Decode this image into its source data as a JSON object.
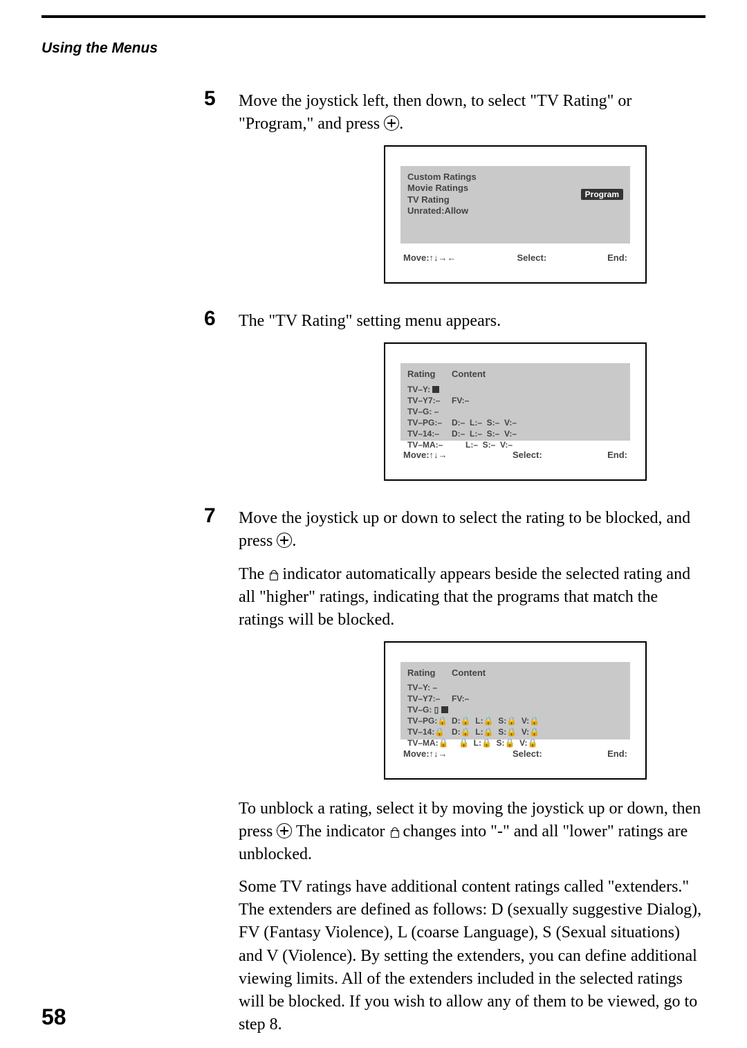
{
  "colors": {
    "rule": "#000000",
    "osd_bg": "#c9c9c9",
    "osd_text": "#444444",
    "pill_bg": "#333333"
  },
  "section_title": "Using the Menus",
  "page_number": "58",
  "steps": {
    "s5": {
      "num": "5",
      "text_a": "Move the joystick left, then down, to select \"TV Rating\" or \"Program,\" and press ",
      "text_b": "."
    },
    "s6": {
      "num": "6",
      "text": "The \"TV Rating\" setting menu appears."
    },
    "s7": {
      "num": "7",
      "p1a": "Move the joystick up or down to select the rating to be blocked, and press ",
      "p1b": ".",
      "p2a": "The ",
      "p2b": " indicator automatically appears beside the selected rating and all \"higher\" ratings, indicating that the programs that match the ratings will be blocked.",
      "p3a": "To unblock a rating, select it by moving the joystick up or down, then press ",
      "p3b": "  The indicator ",
      "p3c": " changes into \"-\" and all \"lower\" ratings are unblocked.",
      "p4": "Some TV ratings have additional content ratings called \"extenders.\" The extenders are defined as follows: D (sexually suggestive Dialog), FV (Fantasy Violence), L (coarse Language), S (Sexual situations) and V (Violence). By setting the extenders, you can define additional viewing limits. All of the extenders included in the selected ratings will be blocked. If you wish to allow any of them to be viewed, go to step 8."
    }
  },
  "osd1": {
    "lines": [
      "Custom Ratings",
      "Movie Ratings",
      "TV Rating",
      "Unrated:Allow"
    ],
    "pill": "Program",
    "footer": {
      "move": "Move:↑↓→←",
      "select": "Select:",
      "end": "End:"
    }
  },
  "osd2": {
    "hdr_rating": "Rating",
    "hdr_content": "Content",
    "rows": [
      {
        "r": "TV–Y:",
        "c": "",
        "sel": true
      },
      {
        "r": "TV–Y7:–",
        "c": "FV:–"
      },
      {
        "r": "TV–G: –",
        "c": ""
      },
      {
        "r": "TV–PG:–",
        "c": "D:–  L:–  S:–  V:–"
      },
      {
        "r": "TV–14:–",
        "c": "D:–  L:–  S:–  V:–"
      },
      {
        "r": "TV–MA:–",
        "c": "      L:–  S:–  V:–"
      }
    ],
    "footer": {
      "move": "Move:↑↓→",
      "select": "Select:",
      "end": "End:"
    }
  },
  "osd3": {
    "hdr_rating": "Rating",
    "hdr_content": "Content",
    "rows": [
      {
        "r": "TV–Y:  –",
        "c": ""
      },
      {
        "r": "TV–Y7:–",
        "c": "FV:–"
      },
      {
        "r": "TV–G: ▯",
        "c": "",
        "sel": true
      },
      {
        "r": "TV–PG:🔒",
        "c": "D:🔒  L:🔒  S:🔒  V:🔒"
      },
      {
        "r": "TV–14:🔒",
        "c": "D:🔒  L:🔒  S:🔒  V:🔒"
      },
      {
        "r": "TV–MA:🔒",
        "c": "   🔒  L:🔒  S:🔒  V:🔒"
      }
    ],
    "footer": {
      "move": "Move:↑↓→",
      "select": "Select:",
      "end": "End:"
    }
  }
}
